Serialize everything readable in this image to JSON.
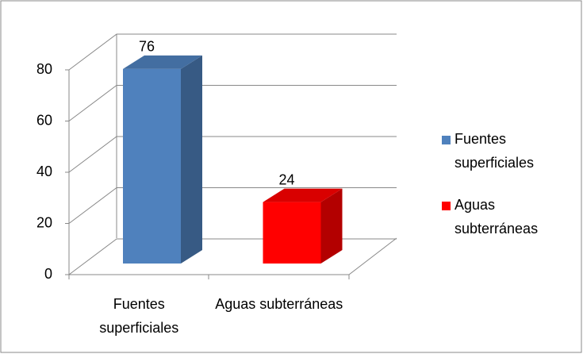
{
  "chart_data": {
    "type": "bar3d",
    "categories": [
      "Fuentes superficiales",
      "Aguas subterráneas"
    ],
    "values": [
      76,
      24
    ],
    "colors": [
      "#4f81bd",
      "#ff0000"
    ],
    "ylim": [
      0,
      80
    ],
    "yticks": [
      0,
      20,
      40,
      60,
      80
    ],
    "grid": true,
    "legend": "right"
  }
}
